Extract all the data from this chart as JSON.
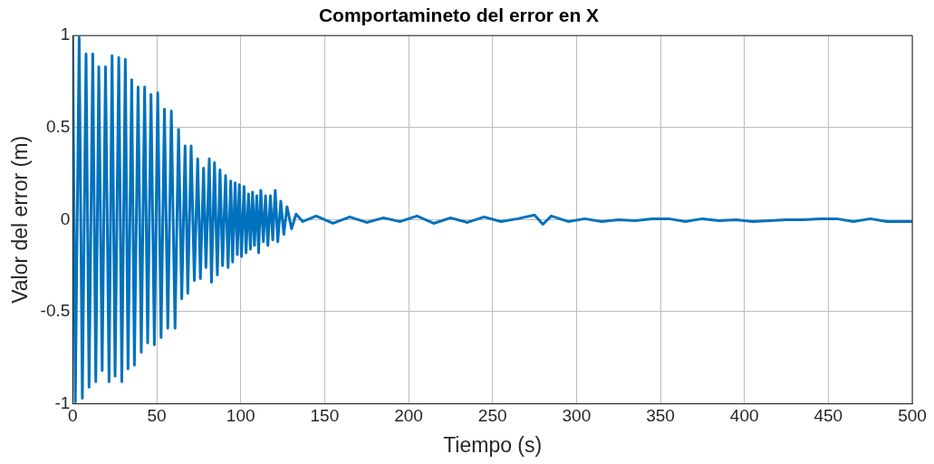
{
  "chart_data": {
    "type": "line",
    "title": "Comportamineto del error en X",
    "xlabel": "Tiempo (s)",
    "ylabel": "Valor del error (m)",
    "x": [
      0,
      1.5,
      3.8,
      5.7,
      7.9,
      9.7,
      11.9,
      13.7,
      15.5,
      17.5,
      19.5,
      21.6,
      23.4,
      25.2,
      27.4,
      29.2,
      31.3,
      32.9,
      35.1,
      36.7,
      38.9,
      40.8,
      42.8,
      44.6,
      46.6,
      48.6,
      50.6,
      52.6,
      54.6,
      56.6,
      58.7,
      60.9,
      63.0,
      64.9,
      66.9,
      68.5,
      70.5,
      72.4,
      74.4,
      76.0,
      77.9,
      79.3,
      81.3,
      82.6,
      84.4,
      86.1,
      87.7,
      89.2,
      91.0,
      92.5,
      94.1,
      95.2,
      96.7,
      98.0,
      99.2,
      100.5,
      102.0,
      103.2,
      104.7,
      105.8,
      107.1,
      108.2,
      109.6,
      110.7,
      112.0,
      113.5,
      114.8,
      116.2,
      117.7,
      119.1,
      120.6,
      122.1,
      123.9,
      125.7,
      127.6,
      130.3,
      133.0,
      137,
      145,
      155,
      165,
      175,
      185,
      195,
      205,
      215,
      225,
      235,
      245,
      255,
      265,
      275,
      280,
      285,
      295,
      305,
      315,
      325,
      335,
      345,
      355,
      365,
      375,
      385,
      395,
      405,
      415,
      425,
      435,
      445,
      455,
      465,
      475,
      485,
      495,
      500
    ],
    "series": [
      {
        "color": "#0072bd",
        "values": [
          1.0,
          -0.99,
          0.99,
          -0.97,
          0.9,
          -0.91,
          0.9,
          -0.88,
          0.83,
          -0.82,
          0.83,
          -0.88,
          0.89,
          -0.85,
          0.88,
          -0.88,
          0.87,
          -0.81,
          0.76,
          -0.79,
          0.72,
          -0.72,
          0.72,
          -0.67,
          0.68,
          -0.68,
          0.69,
          -0.64,
          0.6,
          -0.59,
          0.59,
          -0.59,
          0.49,
          -0.43,
          0.4,
          -0.4,
          0.4,
          -0.33,
          0.33,
          -0.32,
          0.28,
          -0.26,
          0.33,
          -0.34,
          0.31,
          -0.3,
          0.27,
          -0.25,
          0.24,
          -0.26,
          0.21,
          -0.23,
          0.2,
          -0.19,
          0.19,
          -0.2,
          0.18,
          -0.18,
          0.14,
          -0.16,
          0.15,
          -0.14,
          0.13,
          -0.18,
          0.16,
          -0.12,
          0.13,
          -0.14,
          0.13,
          -0.11,
          0.16,
          -0.12,
          0.1,
          -0.08,
          0.07,
          -0.05,
          0.03,
          -0.01,
          0.02,
          -0.02,
          0.015,
          -0.015,
          0.01,
          -0.01,
          0.02,
          -0.02,
          0.01,
          -0.015,
          0.015,
          -0.01,
          0.005,
          0.025,
          -0.025,
          0.02,
          -0.01,
          0.005,
          -0.01,
          0,
          -0.005,
          0.005,
          0.005,
          -0.01,
          0.005,
          -0.005,
          0,
          -0.01,
          -0.005,
          0,
          0,
          0.005,
          0.005,
          -0.01,
          0.005,
          -0.01,
          -0.01,
          -0.01
        ]
      }
    ],
    "xlim": [
      0,
      500
    ],
    "xticks": [
      0,
      50,
      100,
      150,
      200,
      250,
      300,
      350,
      400,
      450,
      500
    ],
    "ylim": [
      -1,
      1
    ],
    "yticks": [
      -1,
      -0.5,
      0,
      0.5,
      1
    ],
    "grid": true,
    "line_style": "solid",
    "marker": "none"
  }
}
